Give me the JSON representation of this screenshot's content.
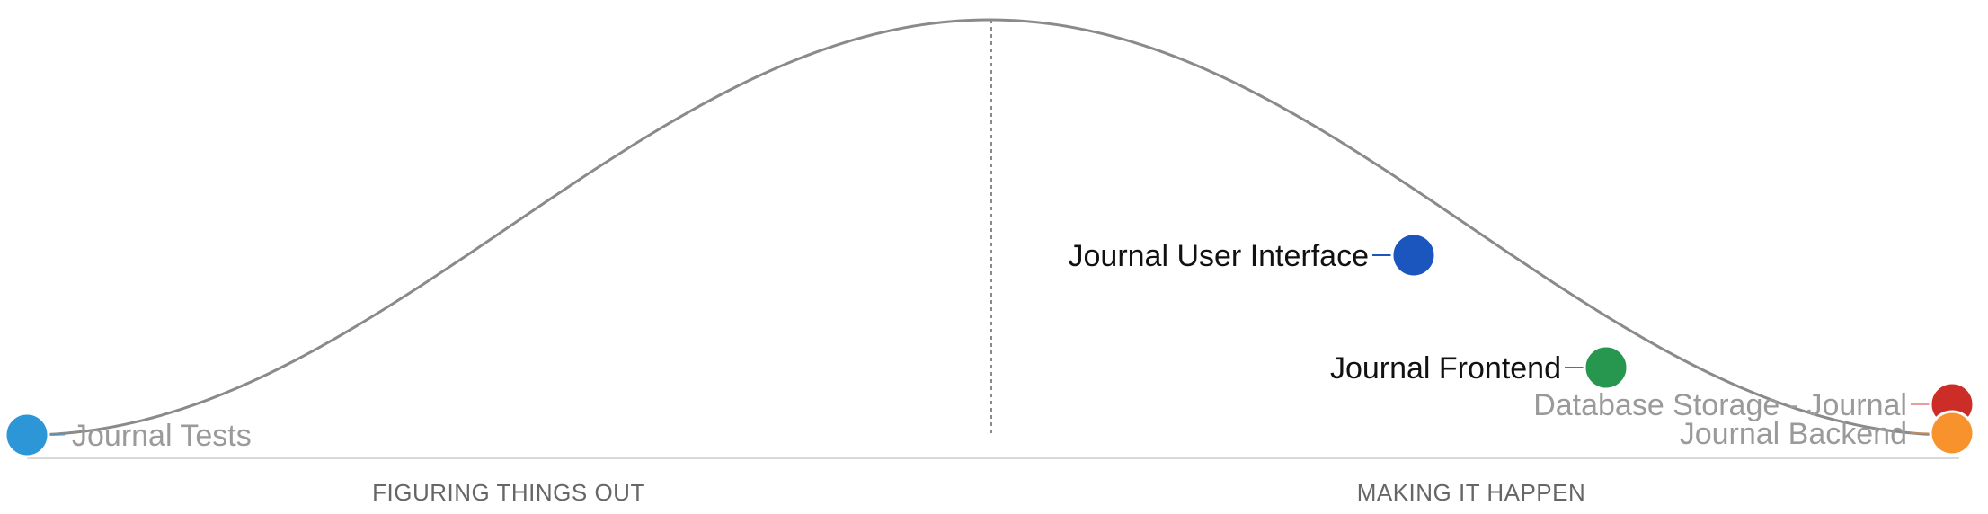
{
  "sections": {
    "left": "FIGURING THINGS OUT",
    "right": "MAKING IT HAPPEN"
  },
  "items": [
    {
      "name": "Journal Tests",
      "progress": 0.0,
      "color": "#2d96d6",
      "faded": true
    },
    {
      "name": "Journal User Interface",
      "progress": 0.7,
      "color": "#1a56be",
      "faded": false
    },
    {
      "name": "Journal Frontend",
      "progress": 0.82,
      "color": "#27964f",
      "faded": false
    },
    {
      "name": "Database Storage - Journal",
      "progress": 1.0,
      "color": "#cc2d27",
      "faded": true
    },
    {
      "name": "Journal Backend",
      "progress": 1.0,
      "color": "#f7922c",
      "faded": true
    }
  ],
  "colors": {
    "curve": "#8a8a8a",
    "divider": "#8a8a8a",
    "baseline": "#d9d9d9"
  }
}
